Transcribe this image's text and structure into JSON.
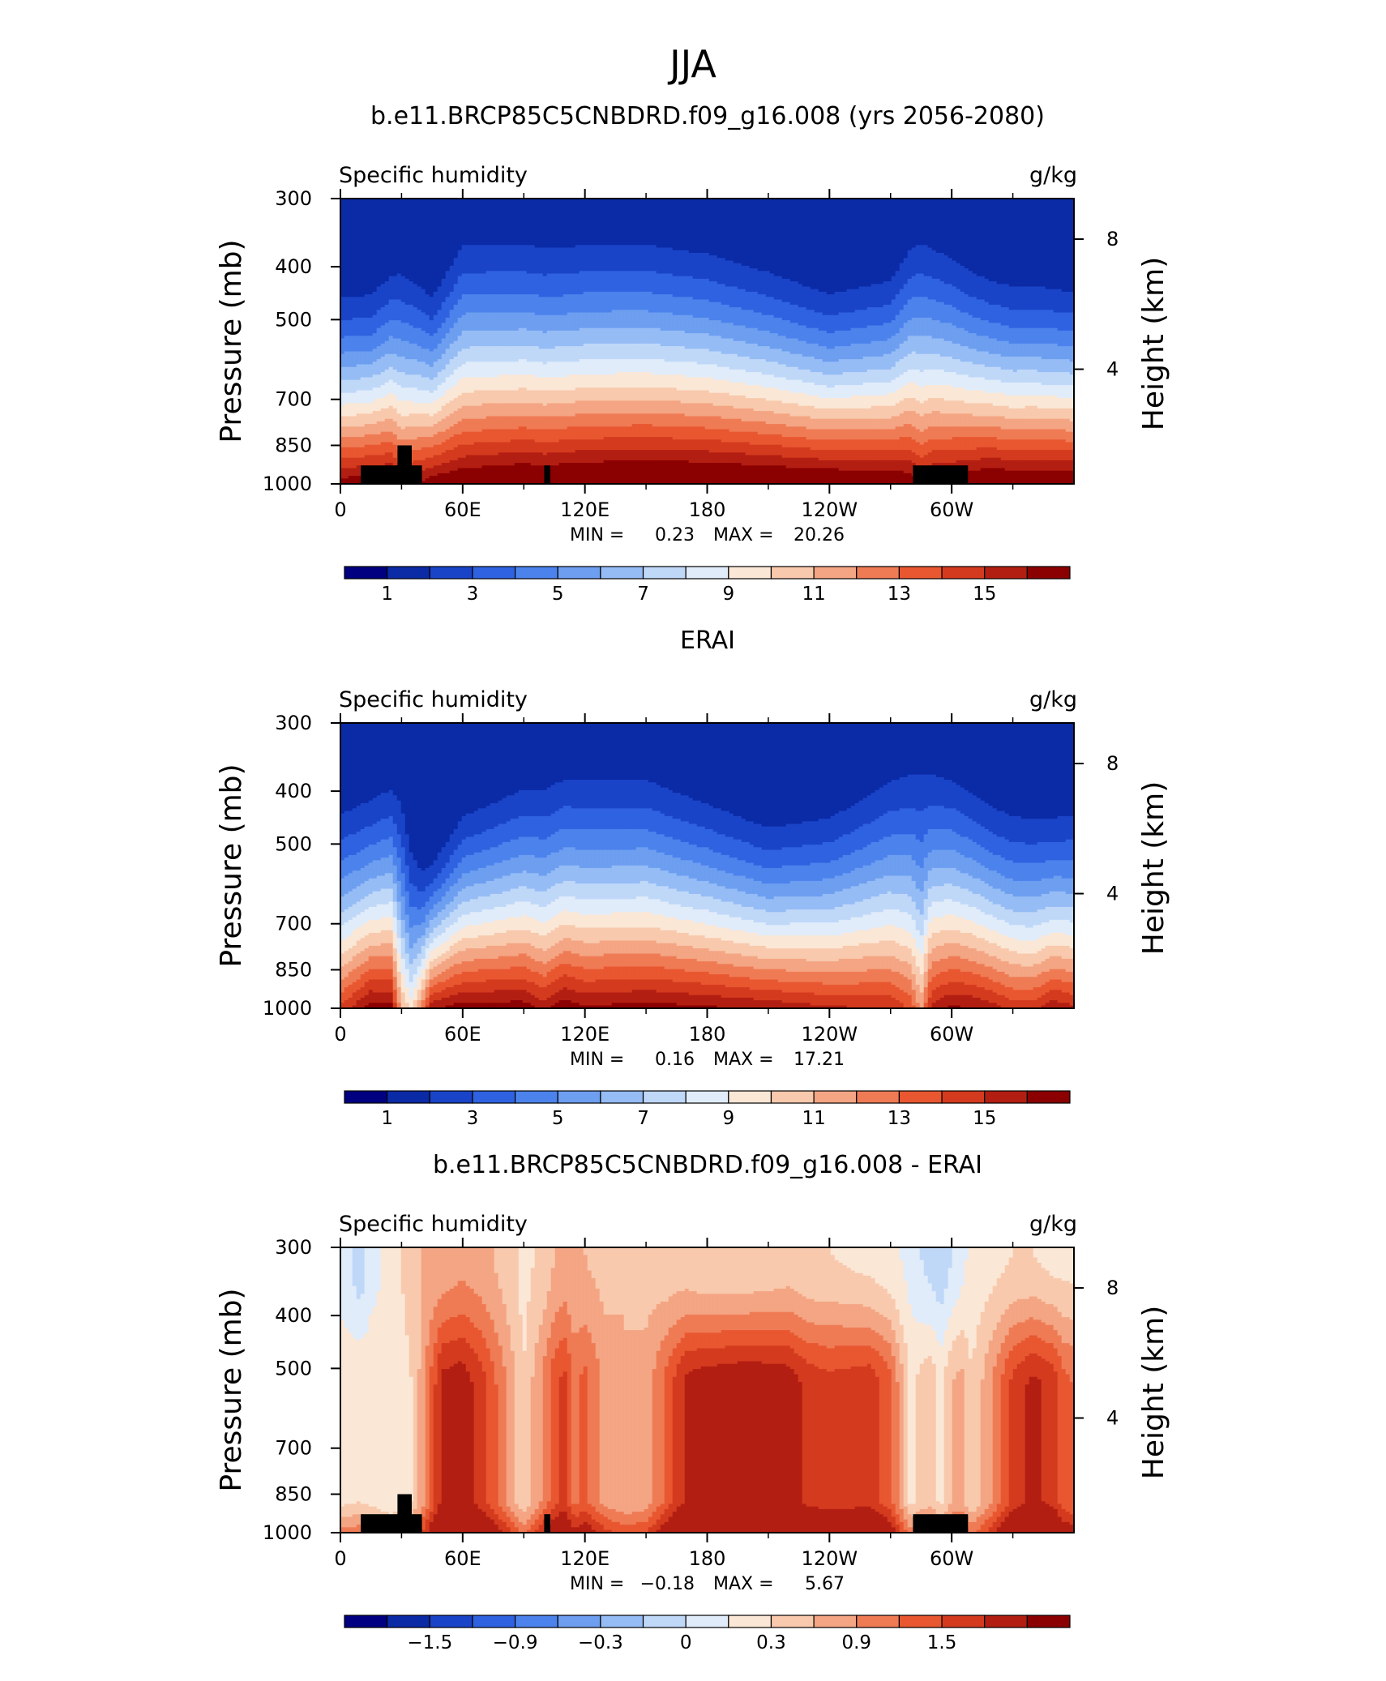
{
  "figure": {
    "title": "JJA"
  },
  "colors": {
    "absolute_palette": [
      "#000080",
      "#0b2aa6",
      "#1a44c8",
      "#2f62e0",
      "#4c82ec",
      "#6d9ef0",
      "#95bcf5",
      "#c0d8f8",
      "#e0ecfa",
      "#fbe7d6",
      "#f8c9ad",
      "#f4a583",
      "#ef7b55",
      "#e85730",
      "#d43a1e",
      "#b31e12",
      "#8b0000"
    ],
    "difference_palette": [
      "#000080",
      "#0b2aa6",
      "#1a44c8",
      "#2f62e0",
      "#4c82ec",
      "#6d9ef0",
      "#95bcf5",
      "#c0d8f8",
      "#e0ecfa",
      "#fbe7d6",
      "#f8c9ad",
      "#f4a583",
      "#ef7b55",
      "#e85730",
      "#d43a1e",
      "#b31e12",
      "#8b0000"
    ],
    "topography": "#000000"
  },
  "chart_data": [
    {
      "type": "heatmap",
      "title": "b.e11.BRCP85C5CNBDRD.f09_g16.008 (yrs 2056-2080)",
      "left_label": "Specific humidity",
      "right_label": "g/kg",
      "ylabel": "Pressure (mb)",
      "ylabel_right": "Height (km)",
      "x_ticks": [
        "0",
        "60E",
        "120E",
        "180",
        "120W",
        "60W"
      ],
      "y_ticks": [
        "300",
        "400",
        "500",
        "700",
        "850",
        "1000"
      ],
      "y_ticks_right": [
        "8",
        "4"
      ],
      "min_label": "MIN =",
      "min_value": "0.23",
      "max_label": "MAX =",
      "max_value": "20.26",
      "colorbar_labels": [
        "1",
        "3",
        "5",
        "7",
        "9",
        "11",
        "13",
        "15"
      ],
      "contour_levels": [
        0,
        1,
        2,
        3,
        4,
        5,
        6,
        7,
        8,
        9,
        10,
        11,
        12,
        13,
        14,
        15,
        16
      ],
      "x": [
        0,
        15,
        25,
        30,
        40,
        45,
        60,
        90,
        100,
        110,
        120,
        150,
        180,
        210,
        240,
        270,
        280,
        285,
        290,
        300,
        310,
        320,
        330,
        340,
        350,
        360
      ],
      "level_top_pressure": [
        420,
        415,
        380,
        375,
        400,
        420,
        330,
        330,
        335,
        335,
        330,
        330,
        345,
        375,
        415,
        390,
        335,
        325,
        335,
        350,
        375,
        390,
        400,
        400,
        405,
        410
      ],
      "surface_humidity": [
        15.6,
        15.9,
        15.9,
        14.6,
        15.3,
        15.8,
        16.3,
        16.8,
        16.6,
        16.8,
        16.9,
        17.1,
        17.0,
        16.8,
        16.6,
        16.3,
        15.9,
        14.9,
        15.7,
        15.9,
        16.3,
        16.6,
        16.4,
        16.5,
        16.5,
        16.4
      ],
      "topography": [
        {
          "x0": 10,
          "x1": 40,
          "top_pressure": 925
        },
        {
          "x0": 28,
          "x1": 35,
          "top_pressure": 850
        },
        {
          "x0": 100,
          "x1": 103,
          "top_pressure": 925
        },
        {
          "x0": 281,
          "x1": 308,
          "top_pressure": 925
        }
      ]
    },
    {
      "type": "heatmap",
      "title": "ERAI",
      "left_label": "Specific humidity",
      "right_label": "g/kg",
      "ylabel": "Pressure (mb)",
      "ylabel_right": "Height (km)",
      "x_ticks": [
        "0",
        "60E",
        "120E",
        "180",
        "120W",
        "60W"
      ],
      "y_ticks": [
        "300",
        "400",
        "500",
        "700",
        "850",
        "1000"
      ],
      "y_ticks_right": [
        "8",
        "4"
      ],
      "min_label": "MIN =",
      "min_value": "0.16",
      "max_label": "MAX =",
      "max_value": "17.21",
      "colorbar_labels": [
        "1",
        "3",
        "5",
        "7",
        "9",
        "11",
        "13",
        "15"
      ],
      "contour_levels": [
        0,
        1,
        2,
        3,
        4,
        5,
        6,
        7,
        8,
        9,
        10,
        11,
        12,
        13,
        14,
        15,
        16
      ],
      "x": [
        0,
        15,
        25,
        30,
        35,
        40,
        45,
        60,
        90,
        100,
        110,
        120,
        150,
        180,
        210,
        240,
        270,
        280,
        285,
        290,
        300,
        310,
        320,
        330,
        340,
        350,
        360
      ],
      "level_top_pressure": [
        400,
        380,
        360,
        375,
        470,
        520,
        510,
        410,
        360,
        360,
        345,
        345,
        345,
        385,
        430,
        410,
        345,
        330,
        325,
        335,
        345,
        365,
        390,
        405,
        410,
        410,
        405
      ],
      "surface_humidity": [
        13.2,
        15.6,
        15.4,
        10.2,
        8.6,
        11.3,
        14.8,
        15.6,
        15.6,
        14.6,
        15.8,
        15.2,
        15.5,
        15.2,
        14.8,
        14.2,
        13.9,
        12.8,
        10.6,
        14.3,
        15.2,
        15.0,
        14.5,
        13.7,
        13.6,
        14.8,
        14.2
      ],
      "topography": []
    },
    {
      "type": "heatmap",
      "title": "b.e11.BRCP85C5CNBDRD.f09_g16.008 - ERAI",
      "left_label": "Specific humidity",
      "right_label": "g/kg",
      "ylabel": "Pressure (mb)",
      "ylabel_right": "Height (km)",
      "x_ticks": [
        "0",
        "60E",
        "120E",
        "180",
        "120W",
        "60W"
      ],
      "y_ticks": [
        "300",
        "400",
        "500",
        "700",
        "850",
        "1000"
      ],
      "y_ticks_right": [
        "8",
        "4"
      ],
      "min_label": "MIN =",
      "min_value": "−0.18",
      "max_label": "MAX =",
      "max_value": "5.67",
      "colorbar_labels": [
        "−1.5",
        "−0.9",
        "−0.3",
        "0",
        "0.3",
        "0.9",
        "1.5"
      ],
      "contour_levels": [
        -2.1,
        -1.8,
        -1.5,
        -1.2,
        -0.9,
        -0.6,
        -0.3,
        0,
        0.3,
        0.6,
        0.9,
        1.2,
        1.5,
        1.8,
        2.1
      ],
      "x": [
        0,
        10,
        15,
        25,
        30,
        35,
        40,
        50,
        60,
        70,
        80,
        90,
        100,
        105,
        110,
        115,
        120,
        130,
        140,
        150,
        160,
        170,
        180,
        200,
        220,
        230,
        240,
        260,
        270,
        280,
        285,
        290,
        295,
        300,
        305,
        310,
        320,
        330,
        340,
        350,
        355,
        360
      ],
      "difference_profile": [
        0.5,
        0.6,
        0.5,
        0.3,
        0.4,
        0.6,
        1.0,
        2.2,
        2.3,
        1.9,
        1.3,
        0.6,
        1.3,
        1.7,
        1.9,
        1.4,
        1.6,
        1.1,
        0.9,
        1.0,
        1.6,
        2.2,
        2.3,
        2.4,
        2.3,
        2.0,
        1.9,
        2.0,
        1.6,
        0.5,
        0.7,
        0.8,
        0.5,
        0.9,
        1.0,
        0.6,
        1.2,
        1.9,
        2.2,
        2.0,
        1.6,
        1.5
      ],
      "upper_profile": [
        0.2,
        -0.2,
        0.2,
        0.4,
        0.6,
        0.8,
        0.9,
        1.0,
        1.1,
        1.0,
        0.8,
        0.5,
        0.7,
        0.9,
        1.0,
        0.9,
        0.9,
        0.8,
        0.9,
        0.8,
        0.7,
        0.7,
        0.6,
        0.6,
        0.7,
        0.6,
        0.6,
        0.5,
        0.4,
        0.2,
        0.0,
        -0.1,
        -0.2,
        0.0,
        0.2,
        0.4,
        0.5,
        0.6,
        0.6,
        0.5,
        0.5,
        0.5
      ],
      "topography": [
        {
          "x0": 10,
          "x1": 40,
          "top_pressure": 925
        },
        {
          "x0": 28,
          "x1": 35,
          "top_pressure": 850
        },
        {
          "x0": 100,
          "x1": 103,
          "top_pressure": 925
        },
        {
          "x0": 281,
          "x1": 308,
          "top_pressure": 925
        }
      ]
    }
  ]
}
